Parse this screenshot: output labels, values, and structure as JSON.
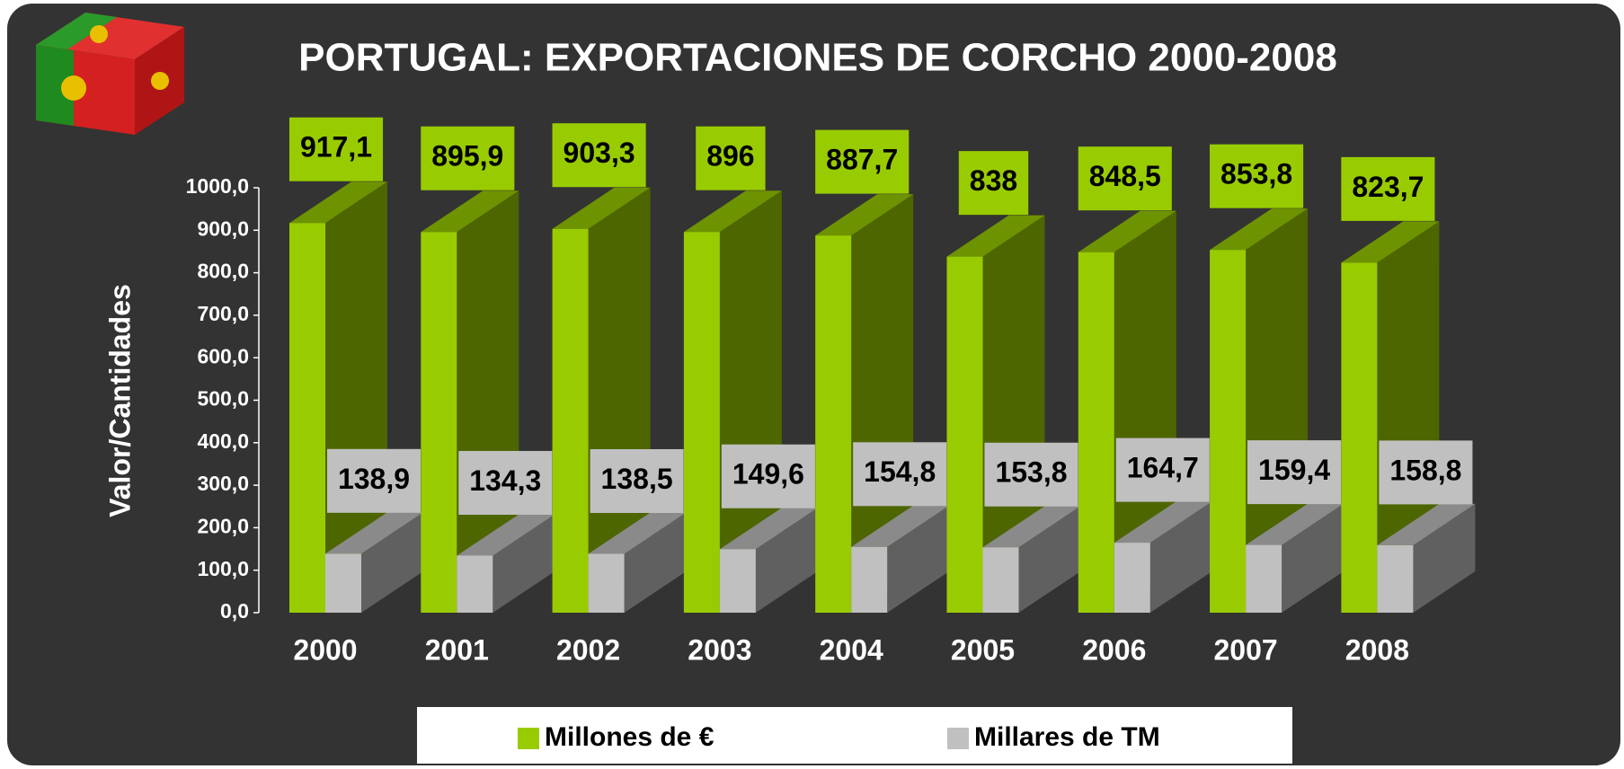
{
  "chart_data": {
    "type": "bar3d",
    "title": "PORTUGAL: EXPORTACIONES DE CORCHO 2000-2008",
    "y_axis_label": "Valor/Cantidades",
    "categories": [
      "2000",
      "2001",
      "2002",
      "2003",
      "2004",
      "2005",
      "2006",
      "2007",
      "2008"
    ],
    "series": [
      {
        "name": "Millones de €",
        "color": "#99cc00",
        "values": [
          917.1,
          895.9,
          903.3,
          896,
          887.7,
          838,
          848.5,
          853.8,
          823.7
        ],
        "value_labels": [
          "917,1",
          "895,9",
          "903,3",
          "896",
          "887,7",
          "838",
          "848,5",
          "853,8",
          "823,7"
        ]
      },
      {
        "name": "Millares de TM",
        "color": "#c0c0c0",
        "values": [
          138.9,
          134.3,
          138.5,
          149.6,
          154.8,
          153.8,
          164.7,
          159.4,
          158.8
        ],
        "value_labels": [
          "138,9",
          "134,3",
          "138,5",
          "149,6",
          "154,8",
          "153,8",
          "164,7",
          "159,4",
          "158,8"
        ]
      }
    ],
    "ylim": [
      0,
      1000
    ],
    "yticks": [
      {
        "value": 0,
        "label": "0,0"
      },
      {
        "value": 100,
        "label": "100,0"
      },
      {
        "value": 200,
        "label": "200,0"
      },
      {
        "value": 300,
        "label": "300,0"
      },
      {
        "value": 400,
        "label": "400,0"
      },
      {
        "value": 500,
        "label": "500,0"
      },
      {
        "value": 600,
        "label": "600,0"
      },
      {
        "value": 700,
        "label": "700,0"
      },
      {
        "value": 800,
        "label": "800,0"
      },
      {
        "value": 900,
        "label": "900,0"
      },
      {
        "value": 1000,
        "label": "1000,0"
      }
    ],
    "grid": false,
    "legend": "bottom"
  }
}
